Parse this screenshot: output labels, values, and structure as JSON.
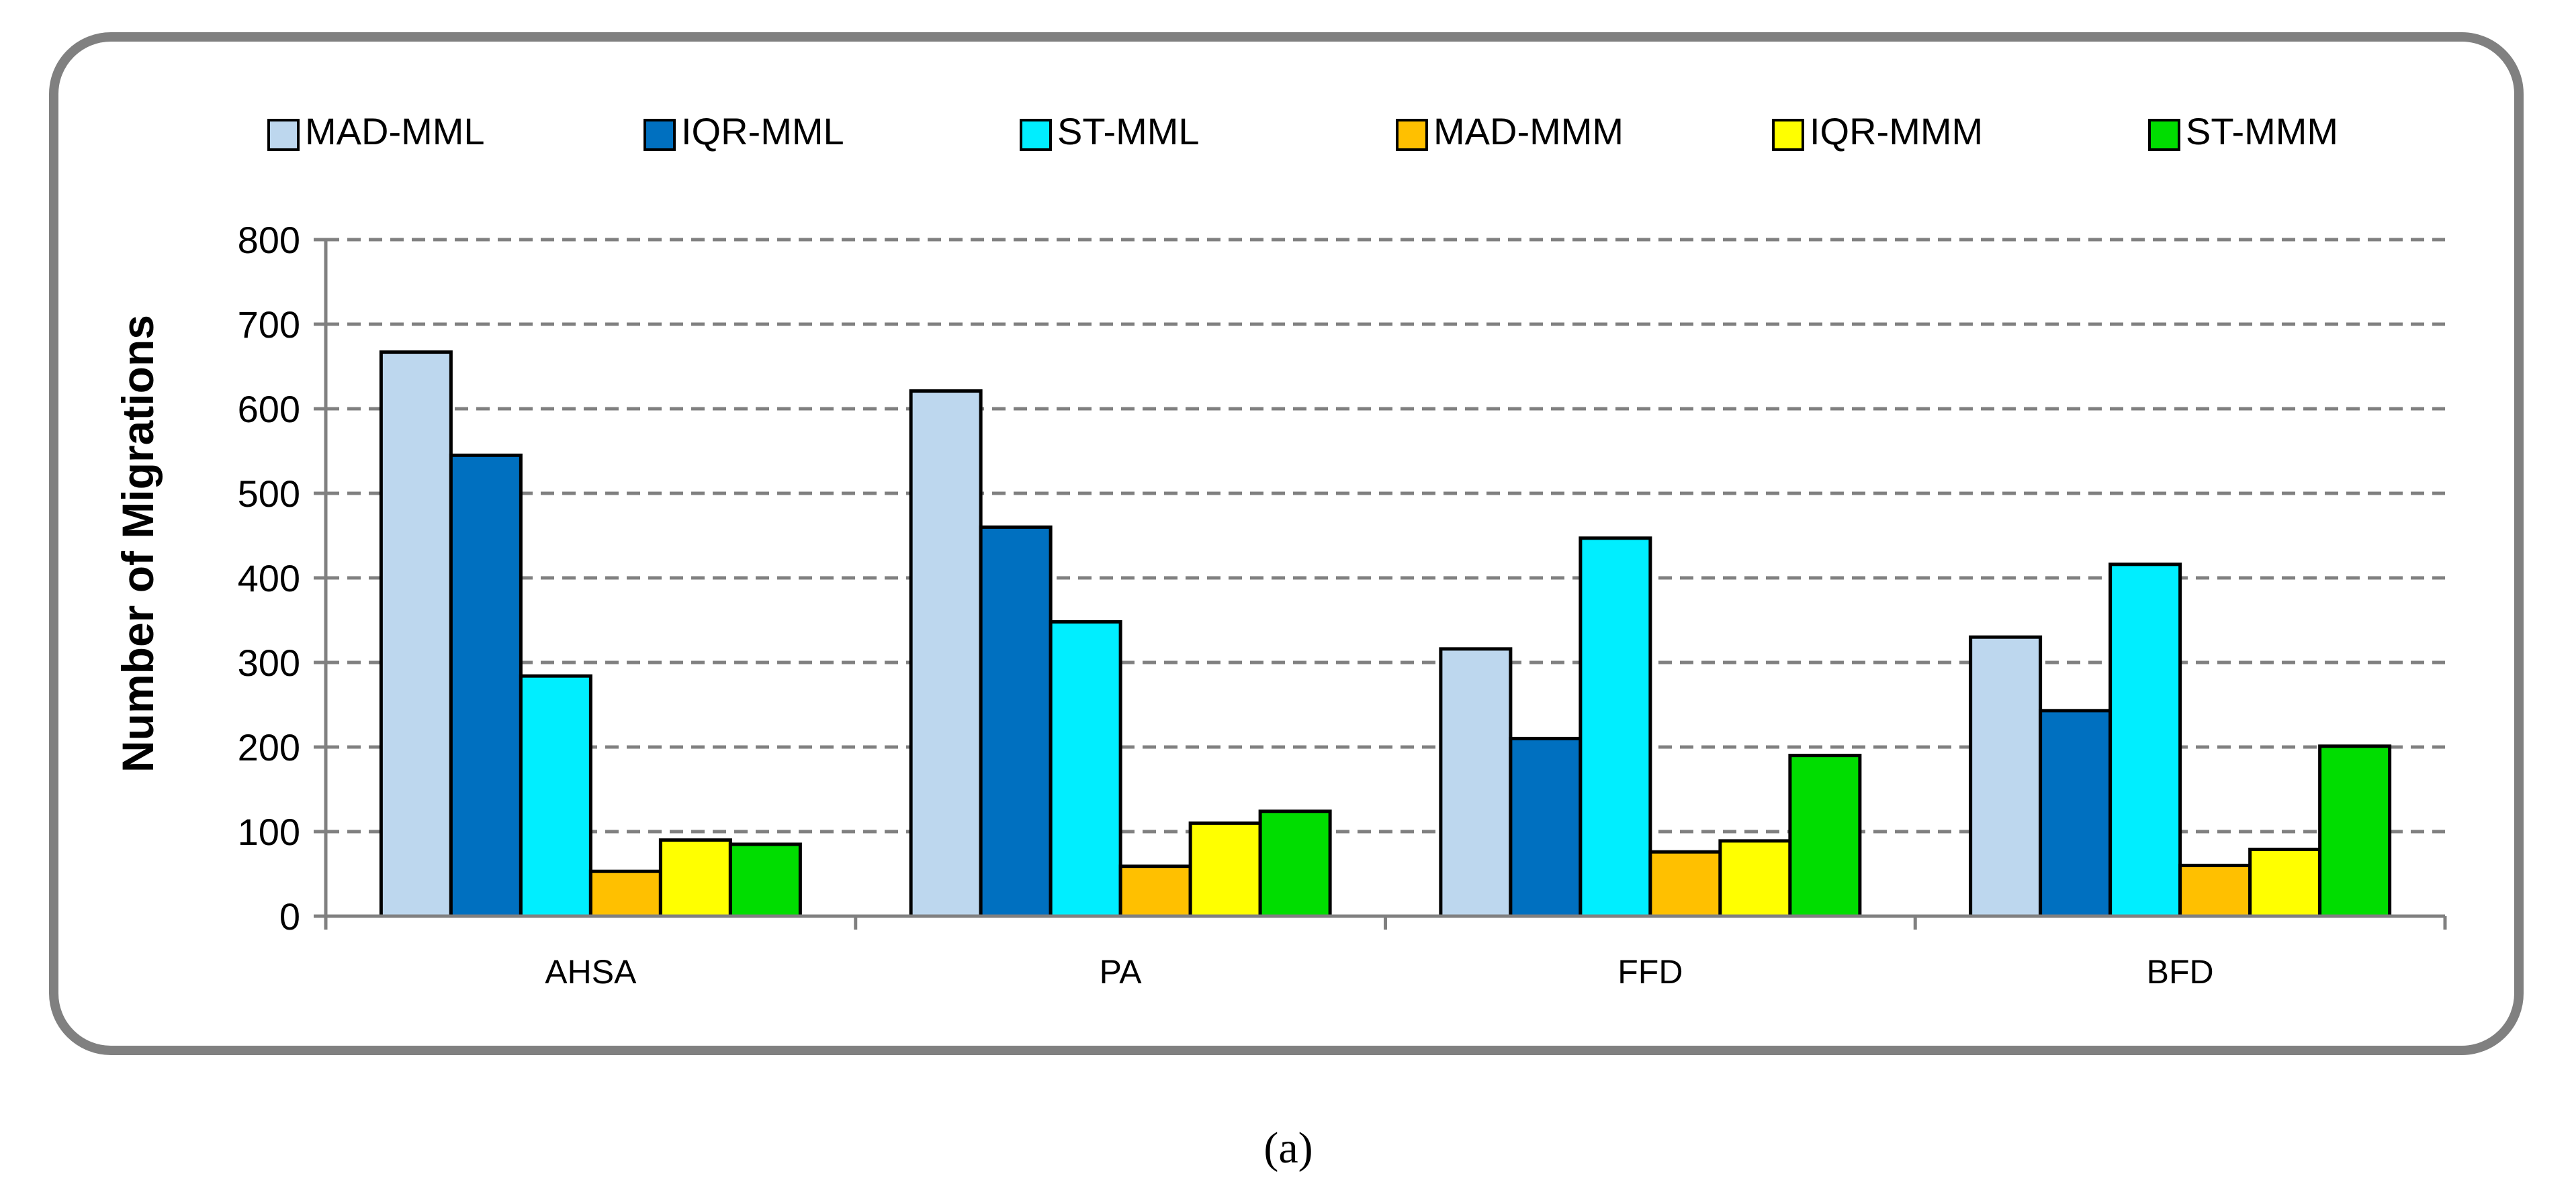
{
  "chart_data": {
    "type": "bar",
    "title": "",
    "xlabel": "",
    "ylabel": "Number of Migrations",
    "ylim": [
      0,
      800
    ],
    "yticks": [
      0,
      100,
      200,
      300,
      400,
      500,
      600,
      700,
      800
    ],
    "grid": true,
    "legend_position": "top",
    "categories": [
      "AHSA",
      "PA",
      "FFD",
      "BFD"
    ],
    "series": [
      {
        "name": "MAD-MML",
        "color": "#bdd7ee",
        "values": [
          667,
          621,
          316,
          330
        ]
      },
      {
        "name": "IQR-MML",
        "color": "#0070c0",
        "values": [
          545,
          460,
          210,
          243
        ]
      },
      {
        "name": "ST-MML",
        "color": "#00eeff",
        "values": [
          284,
          348,
          447,
          416
        ]
      },
      {
        "name": "MAD-MMM",
        "color": "#ffc000",
        "values": [
          53,
          59,
          76,
          60
        ]
      },
      {
        "name": "IQR-MMM",
        "color": "#ffff00",
        "values": [
          90,
          110,
          89,
          79
        ]
      },
      {
        "name": "ST-MMM",
        "color": "#00dd00",
        "values": [
          85,
          124,
          190,
          201
        ]
      }
    ]
  },
  "caption": "(a)"
}
